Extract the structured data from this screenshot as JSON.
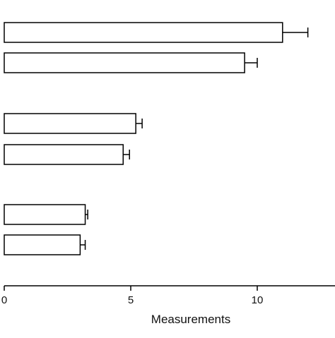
{
  "chart_data": {
    "type": "bar",
    "orientation": "horizontal",
    "xlabel": "Measurements",
    "xlim": [
      0,
      13
    ],
    "xticks": [
      0,
      5,
      10
    ],
    "xtick_labels": [
      "0",
      "5",
      "10"
    ],
    "bar_fill": "#ffffff",
    "bar_stroke": "#000000",
    "groups": [
      {
        "bars": [
          {
            "value": 11.0,
            "error": 1.0
          },
          {
            "value": 9.5,
            "error": 0.5
          }
        ]
      },
      {
        "bars": [
          {
            "value": 5.2,
            "error": 0.25
          },
          {
            "value": 4.7,
            "error": 0.25
          }
        ]
      },
      {
        "bars": [
          {
            "value": 3.2,
            "error": 0.1
          },
          {
            "value": 3.0,
            "error": 0.2
          }
        ]
      }
    ]
  }
}
